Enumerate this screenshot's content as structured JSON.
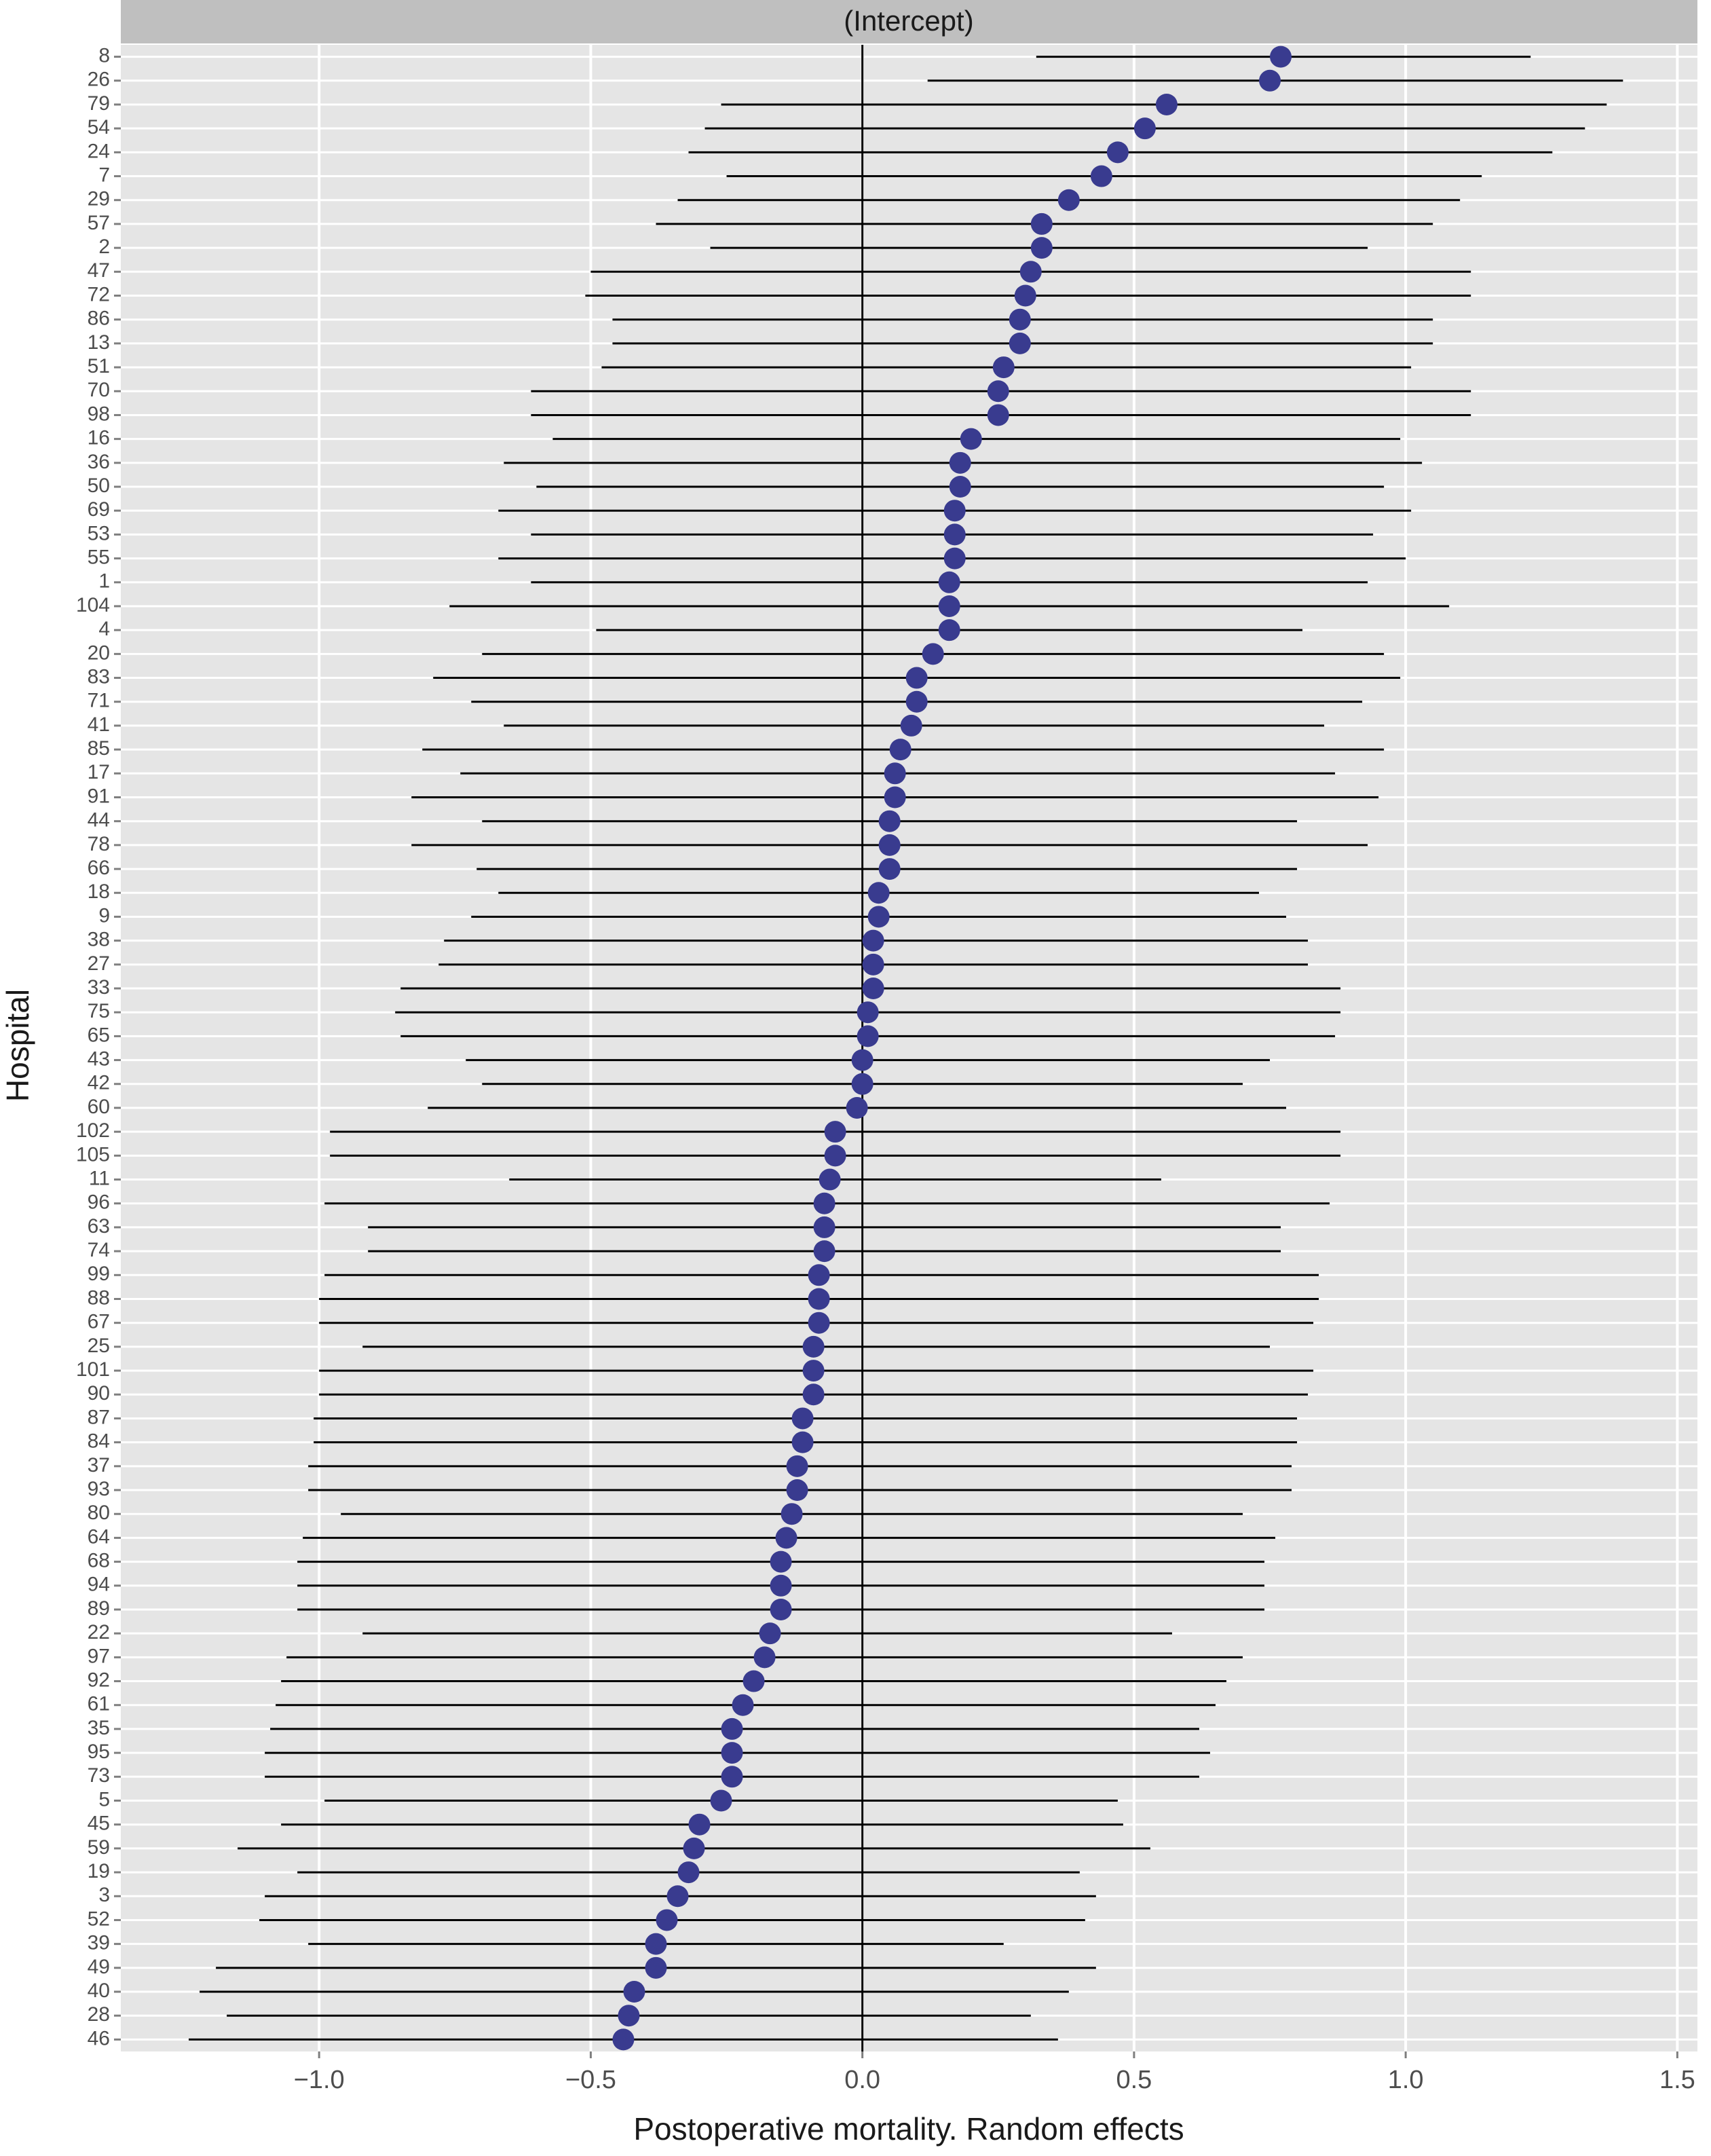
{
  "chart_data": {
    "type": "caterpillar",
    "panel_title": "(Intercept)",
    "xlabel": "Postoperative mortality. Random effects",
    "ylabel": "Hospital",
    "categories": [
      "8",
      "26",
      "79",
      "54",
      "24",
      "7",
      "29",
      "57",
      "2",
      "47",
      "72",
      "86",
      "13",
      "51",
      "70",
      "98",
      "16",
      "36",
      "50",
      "69",
      "53",
      "55",
      "1",
      "104",
      "4",
      "20",
      "83",
      "71",
      "41",
      "85",
      "17",
      "91",
      "44",
      "78",
      "66",
      "18",
      "9",
      "38",
      "27",
      "33",
      "75",
      "65",
      "43",
      "42",
      "60",
      "102",
      "105",
      "11",
      "96",
      "63",
      "74",
      "99",
      "88",
      "67",
      "25",
      "101",
      "90",
      "87",
      "84",
      "37",
      "93",
      "80",
      "64",
      "68",
      "94",
      "89",
      "22",
      "97",
      "92",
      "61",
      "35",
      "95",
      "73",
      "5",
      "45",
      "59",
      "19",
      "3",
      "52",
      "39",
      "49",
      "40",
      "28",
      "46"
    ],
    "values": [
      0.77,
      0.75,
      0.56,
      0.52,
      0.47,
      0.44,
      0.38,
      0.33,
      0.33,
      0.31,
      0.3,
      0.29,
      0.29,
      0.26,
      0.25,
      0.25,
      0.2,
      0.18,
      0.18,
      0.17,
      0.17,
      0.17,
      0.16,
      0.16,
      0.16,
      0.13,
      0.1,
      0.1,
      0.09,
      0.07,
      0.06,
      0.06,
      0.05,
      0.05,
      0.05,
      0.03,
      0.03,
      0.02,
      0.02,
      0.02,
      0.01,
      0.01,
      0.0,
      0.0,
      -0.01,
      -0.05,
      -0.05,
      -0.06,
      -0.07,
      -0.07,
      -0.07,
      -0.08,
      -0.08,
      -0.08,
      -0.09,
      -0.09,
      -0.09,
      -0.11,
      -0.11,
      -0.12,
      -0.12,
      -0.13,
      -0.14,
      -0.15,
      -0.15,
      -0.15,
      -0.17,
      -0.18,
      -0.2,
      -0.22,
      -0.24,
      -0.24,
      -0.24,
      -0.26,
      -0.3,
      -0.31,
      -0.32,
      -0.34,
      -0.36,
      -0.38,
      -0.38,
      -0.42,
      -0.43,
      -0.44
    ],
    "lower": [
      0.32,
      0.12,
      -0.26,
      -0.29,
      -0.32,
      -0.25,
      -0.34,
      -0.38,
      -0.28,
      -0.5,
      -0.51,
      -0.46,
      -0.46,
      -0.48,
      -0.61,
      -0.61,
      -0.57,
      -0.66,
      -0.6,
      -0.67,
      -0.61,
      -0.67,
      -0.61,
      -0.76,
      -0.49,
      -0.7,
      -0.79,
      -0.72,
      -0.66,
      -0.81,
      -0.74,
      -0.83,
      -0.7,
      -0.83,
      -0.71,
      -0.67,
      -0.72,
      -0.77,
      -0.78,
      -0.85,
      -0.86,
      -0.85,
      -0.73,
      -0.7,
      -0.8,
      -0.98,
      -0.98,
      -0.65,
      -0.99,
      -0.91,
      -0.91,
      -0.99,
      -1.0,
      -1.0,
      -0.92,
      -1.0,
      -1.0,
      -1.01,
      -1.01,
      -1.02,
      -1.02,
      -0.96,
      -1.03,
      -1.04,
      -1.04,
      -1.04,
      -0.92,
      -1.06,
      -1.07,
      -1.08,
      -1.09,
      -1.1,
      -1.1,
      -0.99,
      -1.07,
      -1.15,
      -1.04,
      -1.1,
      -1.11,
      -1.02,
      -1.19,
      -1.22,
      -1.17,
      -1.24
    ],
    "upper": [
      1.23,
      1.4,
      1.37,
      1.33,
      1.27,
      1.14,
      1.1,
      1.05,
      0.93,
      1.12,
      1.12,
      1.05,
      1.05,
      1.01,
      1.12,
      1.12,
      0.99,
      1.03,
      0.96,
      1.01,
      0.94,
      1.0,
      0.93,
      1.08,
      0.81,
      0.96,
      0.99,
      0.92,
      0.85,
      0.96,
      0.87,
      0.95,
      0.8,
      0.93,
      0.8,
      0.73,
      0.78,
      0.82,
      0.82,
      0.88,
      0.88,
      0.87,
      0.75,
      0.7,
      0.78,
      0.88,
      0.88,
      0.55,
      0.86,
      0.77,
      0.77,
      0.84,
      0.84,
      0.83,
      0.75,
      0.83,
      0.82,
      0.8,
      0.8,
      0.79,
      0.79,
      0.7,
      0.76,
      0.74,
      0.74,
      0.74,
      0.57,
      0.7,
      0.67,
      0.65,
      0.62,
      0.64,
      0.62,
      0.47,
      0.48,
      0.53,
      0.4,
      0.43,
      0.41,
      0.26,
      0.43,
      0.38,
      0.31,
      0.36
    ],
    "color": "#393b8f",
    "xlim": [
      -1.365,
      1.537
    ],
    "xticks": [
      {
        "value": -1,
        "label": "−1.0"
      },
      {
        "value": -0.5,
        "label": "−0.5"
      },
      {
        "value": 0,
        "label": "0.0"
      },
      {
        "value": 0.5,
        "label": "0.5"
      },
      {
        "value": 1,
        "label": "1.0"
      },
      {
        "value": 1.5,
        "label": "1.5"
      }
    ],
    "reference_line": 0,
    "grid": true
  }
}
